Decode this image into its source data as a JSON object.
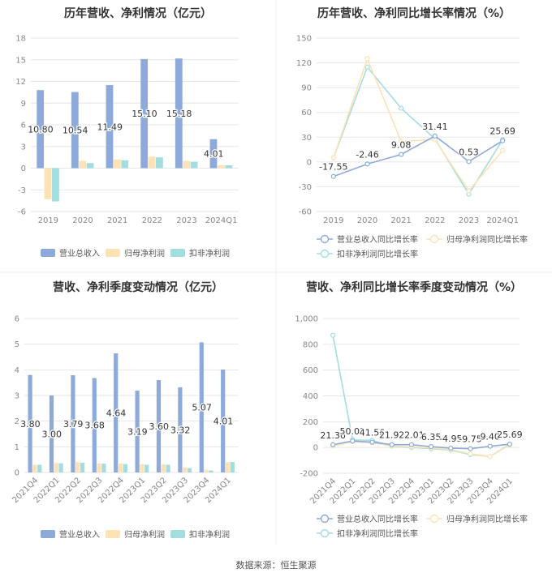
{
  "source": "数据来源：恒生聚源",
  "colors": {
    "revenue": "#8eaadb",
    "parent_profit": "#fde2b5",
    "deducted_profit": "#a2dde0",
    "revenue_line": "#8eaadb",
    "parent_line": "#fde2b5",
    "deducted_line": "#a2dde0",
    "grid": "#e6e6e6",
    "axis_text": "#888888",
    "title": "#333333"
  },
  "chart_data": [
    {
      "type": "bar",
      "title": "历年营收、净利情况（亿元）",
      "categories": [
        "2019",
        "2020",
        "2021",
        "2022",
        "2023",
        "2024Q1"
      ],
      "ylim": [
        -6,
        18
      ],
      "yticks": [
        "-6",
        "-3",
        "0",
        "3",
        "6",
        "9",
        "12",
        "15",
        "18"
      ],
      "series": [
        {
          "name": "营业总收入",
          "values": [
            10.8,
            10.54,
            11.49,
            15.1,
            15.18,
            4.01
          ],
          "labels": [
            "10.80",
            "10.54",
            "11.49",
            "15.10",
            "15.18",
            "4.01"
          ]
        },
        {
          "name": "归母净利润",
          "values": [
            -4.3,
            1.0,
            1.2,
            1.6,
            1.0,
            0.4
          ]
        },
        {
          "name": "扣非净利润",
          "values": [
            -4.6,
            0.7,
            1.1,
            1.5,
            0.9,
            0.4
          ]
        }
      ],
      "legend_position": "bottom"
    },
    {
      "type": "line",
      "title": "历年营收、净利同比增长率情况（%）",
      "categories": [
        "2019",
        "2020",
        "2021",
        "2022",
        "2023",
        "2024Q1"
      ],
      "ylim": [
        -60,
        150
      ],
      "yticks": [
        "-60",
        "-30",
        "0",
        "30",
        "60",
        "90",
        "120",
        "150"
      ],
      "series": [
        {
          "name": "营业总收入同比增长率",
          "values": [
            -17.55,
            -2.46,
            9.08,
            31.41,
            0.53,
            25.69
          ],
          "labels": [
            "-17.55",
            "-2.46",
            "9.08",
            "31.41",
            "0.53",
            "25.69"
          ]
        },
        {
          "name": "归母净利润同比增长率",
          "values": [
            5,
            125,
            25,
            27,
            -35,
            14
          ]
        },
        {
          "name": "扣非净利润同比增长率",
          "values": [
            5,
            115,
            65,
            28,
            -39,
            27
          ]
        }
      ],
      "legend_position": "bottom"
    },
    {
      "type": "bar",
      "title": "营收、净利季度变动情况（亿元）",
      "categories": [
        "2021Q4",
        "2022Q1",
        "2022Q2",
        "2022Q3",
        "2022Q4",
        "2023Q1",
        "2023Q2",
        "2023Q3",
        "2023Q4",
        "2024Q1"
      ],
      "ylim": [
        0,
        6
      ],
      "yticks": [
        "0",
        "1",
        "2",
        "3",
        "4",
        "5",
        "6"
      ],
      "series": [
        {
          "name": "营业总收入",
          "values": [
            3.8,
            3.0,
            3.79,
            3.68,
            4.64,
            3.19,
            3.6,
            3.32,
            5.07,
            4.01
          ],
          "labels": [
            "3.80",
            "3.00",
            "3.79",
            "3.68",
            "4.64",
            "3.19",
            "3.60",
            "3.32",
            "5.07",
            "4.01"
          ]
        },
        {
          "name": "归母净利润",
          "values": [
            0.3,
            0.37,
            0.4,
            0.35,
            0.35,
            0.32,
            0.32,
            0.2,
            0.1,
            0.4
          ]
        },
        {
          "name": "扣非净利润",
          "values": [
            0.3,
            0.36,
            0.38,
            0.34,
            0.33,
            0.3,
            0.3,
            0.17,
            0.08,
            0.41
          ]
        }
      ],
      "legend_position": "bottom"
    },
    {
      "type": "line",
      "title": "营收、净利同比增长率季度变动情况（%）",
      "categories": [
        "2021Q4",
        "2022Q1",
        "2022Q2",
        "2022Q3",
        "2022Q4",
        "2023Q1",
        "2023Q2",
        "2023Q3",
        "2023Q4",
        "2024Q1"
      ],
      "ylim": [
        -200,
        1000
      ],
      "yticks": [
        "-200",
        "0",
        "200",
        "400",
        "600",
        "800",
        "1,000"
      ],
      "series": [
        {
          "name": "营业总收入同比增长率",
          "values": [
            21.36,
            50.01,
            41.56,
            21.92,
            22.01,
            6.35,
            -4.95,
            -9.75,
            9.4,
            25.69
          ],
          "labels": [
            "21.36",
            "50.01",
            "41.56",
            "21.92",
            "22.01",
            "6.35",
            "-4.95",
            "-9.75",
            "9.40",
            "25.69"
          ]
        },
        {
          "name": "归母净利润同比增长率",
          "values": [
            10,
            45,
            35,
            12,
            5,
            -5,
            -15,
            -50,
            -70,
            20
          ]
        },
        {
          "name": "扣非净利润同比增长率",
          "values": [
            870,
            60,
            55,
            10,
            0,
            -10,
            -20,
            -55,
            -70,
            25
          ]
        }
      ],
      "legend_position": "bottom"
    }
  ]
}
